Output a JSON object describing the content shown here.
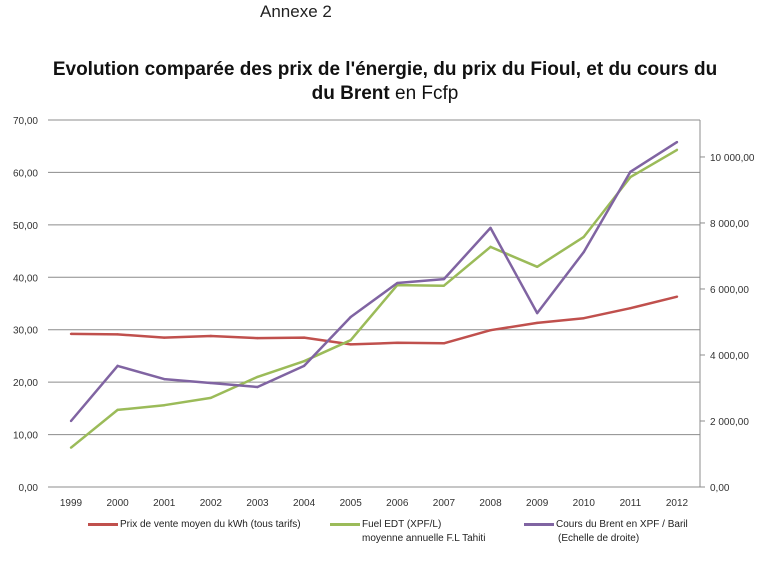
{
  "annex": "Annexe 2",
  "chart_data": {
    "type": "line",
    "title": "Evolution comparée des prix de l'énergie, du prix du Fioul, et du cours du",
    "title_bold_tail": "du Brent",
    "title_suffix": "en Fcfp",
    "categories": [
      "1999",
      "2000",
      "2001",
      "2002",
      "2003",
      "2004",
      "2005",
      "2006",
      "2007",
      "2008",
      "2009",
      "2010",
      "2011",
      "2012"
    ],
    "y_left": {
      "ylim": [
        0,
        70
      ],
      "ticks": [
        "0,00",
        "10,00",
        "20,00",
        "30,00",
        "40,00",
        "50,00",
        "60,00",
        "70,00"
      ],
      "tick_values": [
        0,
        10,
        20,
        30,
        40,
        50,
        60,
        70
      ]
    },
    "y_right": {
      "ylim": [
        0,
        11120
      ],
      "ticks": [
        "0,00",
        "2 000,00",
        "4 000,00",
        "6 000,00",
        "8 000,00",
        "10 000,00"
      ],
      "tick_values": [
        0,
        2000,
        4000,
        6000,
        8000,
        10000
      ]
    },
    "grid": true,
    "legend_position": "bottom",
    "series": [
      {
        "name": "Prix de vente moyen du kWh (tous tarifs)",
        "name2": "",
        "axis": "left",
        "color": "#c0504d",
        "values": [
          29.2,
          29.1,
          28.5,
          28.8,
          28.4,
          28.5,
          27.2,
          27.5,
          27.4,
          29.9,
          31.3,
          32.2,
          34.1,
          36.3
        ]
      },
      {
        "name": "Fuel EDT (XPF/L)",
        "name2": "moyenne annuelle F.L Tahiti",
        "axis": "left",
        "color": "#9bbb59",
        "values": [
          7.5,
          14.7,
          15.6,
          17.0,
          21.0,
          24.0,
          28.0,
          38.5,
          38.4,
          45.8,
          42.0,
          47.7,
          59.1,
          64.3
        ]
      },
      {
        "name": "Cours du Brent en XPF / Baril",
        "name2": "(Echelle de droite)",
        "axis": "right",
        "color": "#8064a2",
        "values": [
          2000,
          3670,
          3270,
          3150,
          3030,
          3670,
          5150,
          6180,
          6300,
          7850,
          5270,
          7120,
          9550,
          10450
        ]
      }
    ]
  }
}
